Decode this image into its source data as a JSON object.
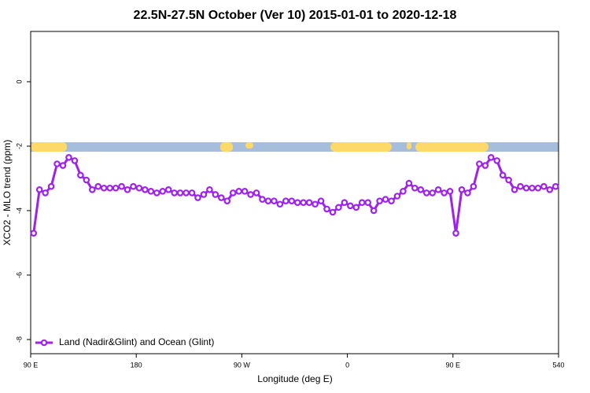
{
  "chart_data": {
    "type": "line",
    "title": "22.5N-27.5N October (Ver 10)   2015-01-01 to 2020-12-18",
    "x_label": "Longitude (deg E)",
    "y_label": "XCO2 - MLO trend (ppm)",
    "x": [
      92.5,
      97.5,
      102.5,
      107.5,
      112.5,
      117.5,
      122.5,
      127.5,
      132.5,
      137.5,
      142.5,
      147.5,
      152.5,
      157.5,
      162.5,
      167.5,
      172.5,
      177.5,
      182.5,
      187.5,
      192.5,
      197.5,
      202.5,
      207.5,
      212.5,
      217.5,
      222.5,
      227.5,
      232.5,
      237.5,
      242.5,
      247.5,
      252.5,
      257.5,
      262.5,
      267.5,
      272.5,
      277.5,
      282.5,
      287.5,
      292.5,
      297.5,
      302.5,
      307.5,
      312.5,
      317.5,
      322.5,
      327.5,
      332.5,
      337.5,
      342.5,
      347.5,
      352.5,
      357.5,
      362.5,
      367.5,
      372.5,
      377.5,
      382.5,
      387.5,
      392.5,
      397.5,
      402.5,
      407.5,
      412.5,
      417.5,
      422.5,
      427.5,
      432.5,
      437.5,
      442.5,
      447.5,
      452.5,
      457.5,
      462.5,
      467.5,
      472.5,
      477.5,
      482.5,
      487.5,
      492.5,
      497.5,
      502.5,
      507.5,
      512.5,
      517.5,
      522.5,
      527.5,
      532.5,
      537.5
    ],
    "series": [
      {
        "name": "Land (Nadir&Glint) and Ocean (Glint)",
        "color": "#a020f0",
        "values": [
          -4.7,
          -3.35,
          -3.45,
          -3.25,
          -2.55,
          -2.6,
          -2.35,
          -2.45,
          -2.9,
          -3.05,
          -3.35,
          -3.25,
          -3.3,
          -3.3,
          -3.3,
          -3.25,
          -3.35,
          -3.25,
          -3.3,
          -3.35,
          -3.4,
          -3.45,
          -3.4,
          -3.35,
          -3.45,
          -3.45,
          -3.45,
          -3.45,
          -3.6,
          -3.5,
          -3.35,
          -3.5,
          -3.6,
          -3.7,
          -3.45,
          -3.4,
          -3.4,
          -3.5,
          -3.45,
          -3.65,
          -3.7,
          -3.7,
          -3.8,
          -3.7,
          -3.7,
          -3.75,
          -3.75,
          -3.75,
          -3.8,
          -3.7,
          -3.95,
          -4.05,
          -3.9,
          -3.75,
          -3.85,
          -3.9,
          -3.75,
          -3.75,
          -4.0,
          -3.7,
          -3.65,
          -3.7,
          -3.55,
          -3.4,
          -3.15,
          -3.3,
          -3.35,
          -3.45,
          -3.45,
          -3.35,
          -3.45,
          -3.4,
          -4.7,
          -3.35,
          -3.45,
          -3.25,
          -2.55,
          -2.6,
          -2.35,
          -2.45,
          -2.9,
          -3.05,
          -3.35,
          -3.25,
          -3.3,
          -3.3,
          -3.3,
          -3.25,
          -3.35,
          -3.25
        ]
      }
    ],
    "xlim": [
      90,
      540
    ],
    "xticks": [
      {
        "value": 90,
        "label": "90 E"
      },
      180,
      {
        "value": 270,
        "label": "90 W"
      },
      {
        "value": 360,
        "label": "0"
      },
      {
        "value": 450,
        "label": "90 E"
      },
      540
    ],
    "ylim": [
      -8.44,
      1.56
    ],
    "yticks": [
      0,
      -2,
      -4,
      -6,
      -8
    ],
    "legend": "bottom-left"
  }
}
